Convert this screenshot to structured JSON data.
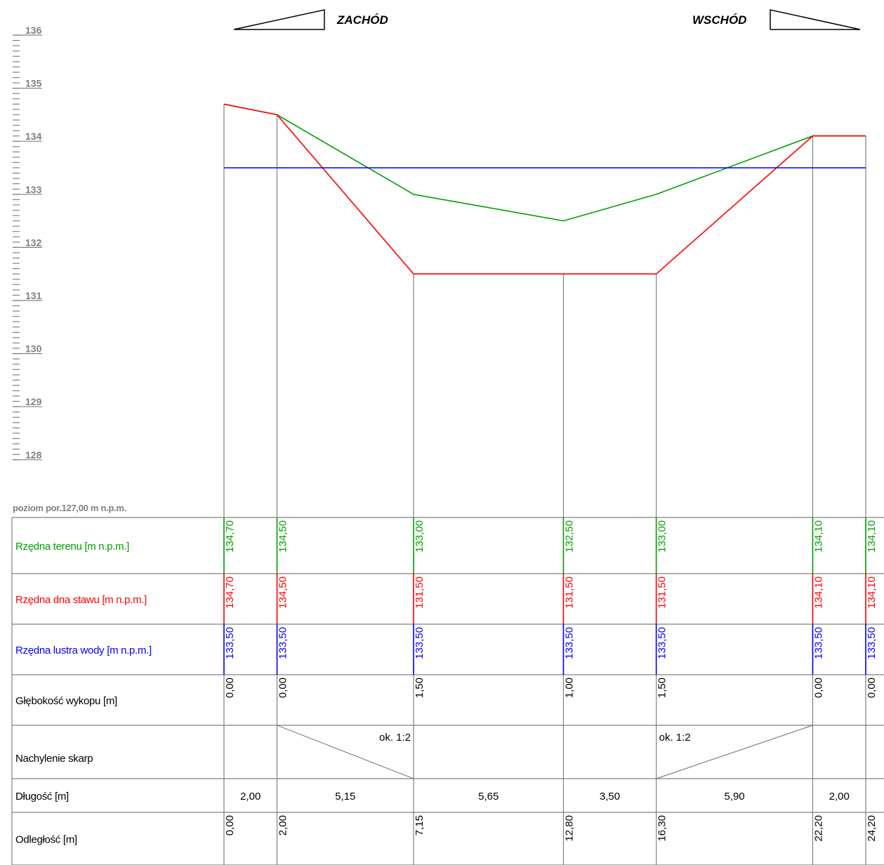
{
  "direction_west": "ZACHÓD",
  "direction_east": "WSCHÓD",
  "reference_level": "poziom por.127,00 m n.p.m.",
  "colors": {
    "terrain": "#00a000",
    "bottom": "#ff0000",
    "water": "#0000ff",
    "grid": "#808080",
    "text": "#000000"
  },
  "chart_data": {
    "type": "line",
    "y_scale_labels": [
      "136",
      "135",
      "134",
      "133",
      "132",
      "131",
      "130",
      "129",
      "128"
    ],
    "ylim": [
      127,
      136
    ],
    "x": [
      0.0,
      2.0,
      7.15,
      12.8,
      16.3,
      22.2,
      24.2
    ],
    "series": [
      {
        "name": "Rzędna terenu [m n.p.m.]",
        "values": [
          134.7,
          134.5,
          133.0,
          132.5,
          133.0,
          134.1,
          134.1
        ]
      },
      {
        "name": "Rzędna dna stawu [m n.p.m.]",
        "values": [
          134.7,
          134.5,
          131.5,
          131.5,
          131.5,
          134.1,
          134.1
        ]
      },
      {
        "name": "Rzędna lustra wody [m n.p.m.]",
        "values": [
          133.5,
          133.5,
          133.5,
          133.5,
          133.5,
          133.5,
          133.5
        ]
      }
    ]
  },
  "table": {
    "rows": [
      {
        "label": "Rzędna terenu [m n.p.m.]",
        "color": "#00a000",
        "values": [
          "134,70",
          "134,50",
          "133,00",
          "132,50",
          "133,00",
          "134,10",
          "134,10"
        ]
      },
      {
        "label": "Rzędna dna stawu [m n.p.m.]",
        "color": "#ff0000",
        "values": [
          "134,70",
          "134,50",
          "131,50",
          "131,50",
          "131,50",
          "134,10",
          "134,10"
        ]
      },
      {
        "label": "Rzędna lustra wody [m n.p.m.]",
        "color": "#0000ff",
        "values": [
          "133,50",
          "133,50",
          "133,50",
          "133,50",
          "133,50",
          "133,50",
          "133,50"
        ]
      },
      {
        "label": "Głębokość wykopu [m]",
        "color": "#000000",
        "values": [
          "0,00",
          "0,00",
          "1,50",
          "1,00",
          "1,50",
          "0,00",
          "0,00"
        ]
      }
    ],
    "slope_label": "Nachylenie skarp",
    "slope_west": "ok. 1:2",
    "slope_east": "ok. 1:2",
    "length_label": "Długość [m]",
    "lengths": [
      "2,00",
      "5,15",
      "5,65",
      "3,50",
      "5,90",
      "2,00"
    ],
    "distance_label": "Odległość [m]",
    "distances": [
      "0,00",
      "2,00",
      "7,15",
      "12,80",
      "16,30",
      "22,20",
      "24,20"
    ]
  }
}
